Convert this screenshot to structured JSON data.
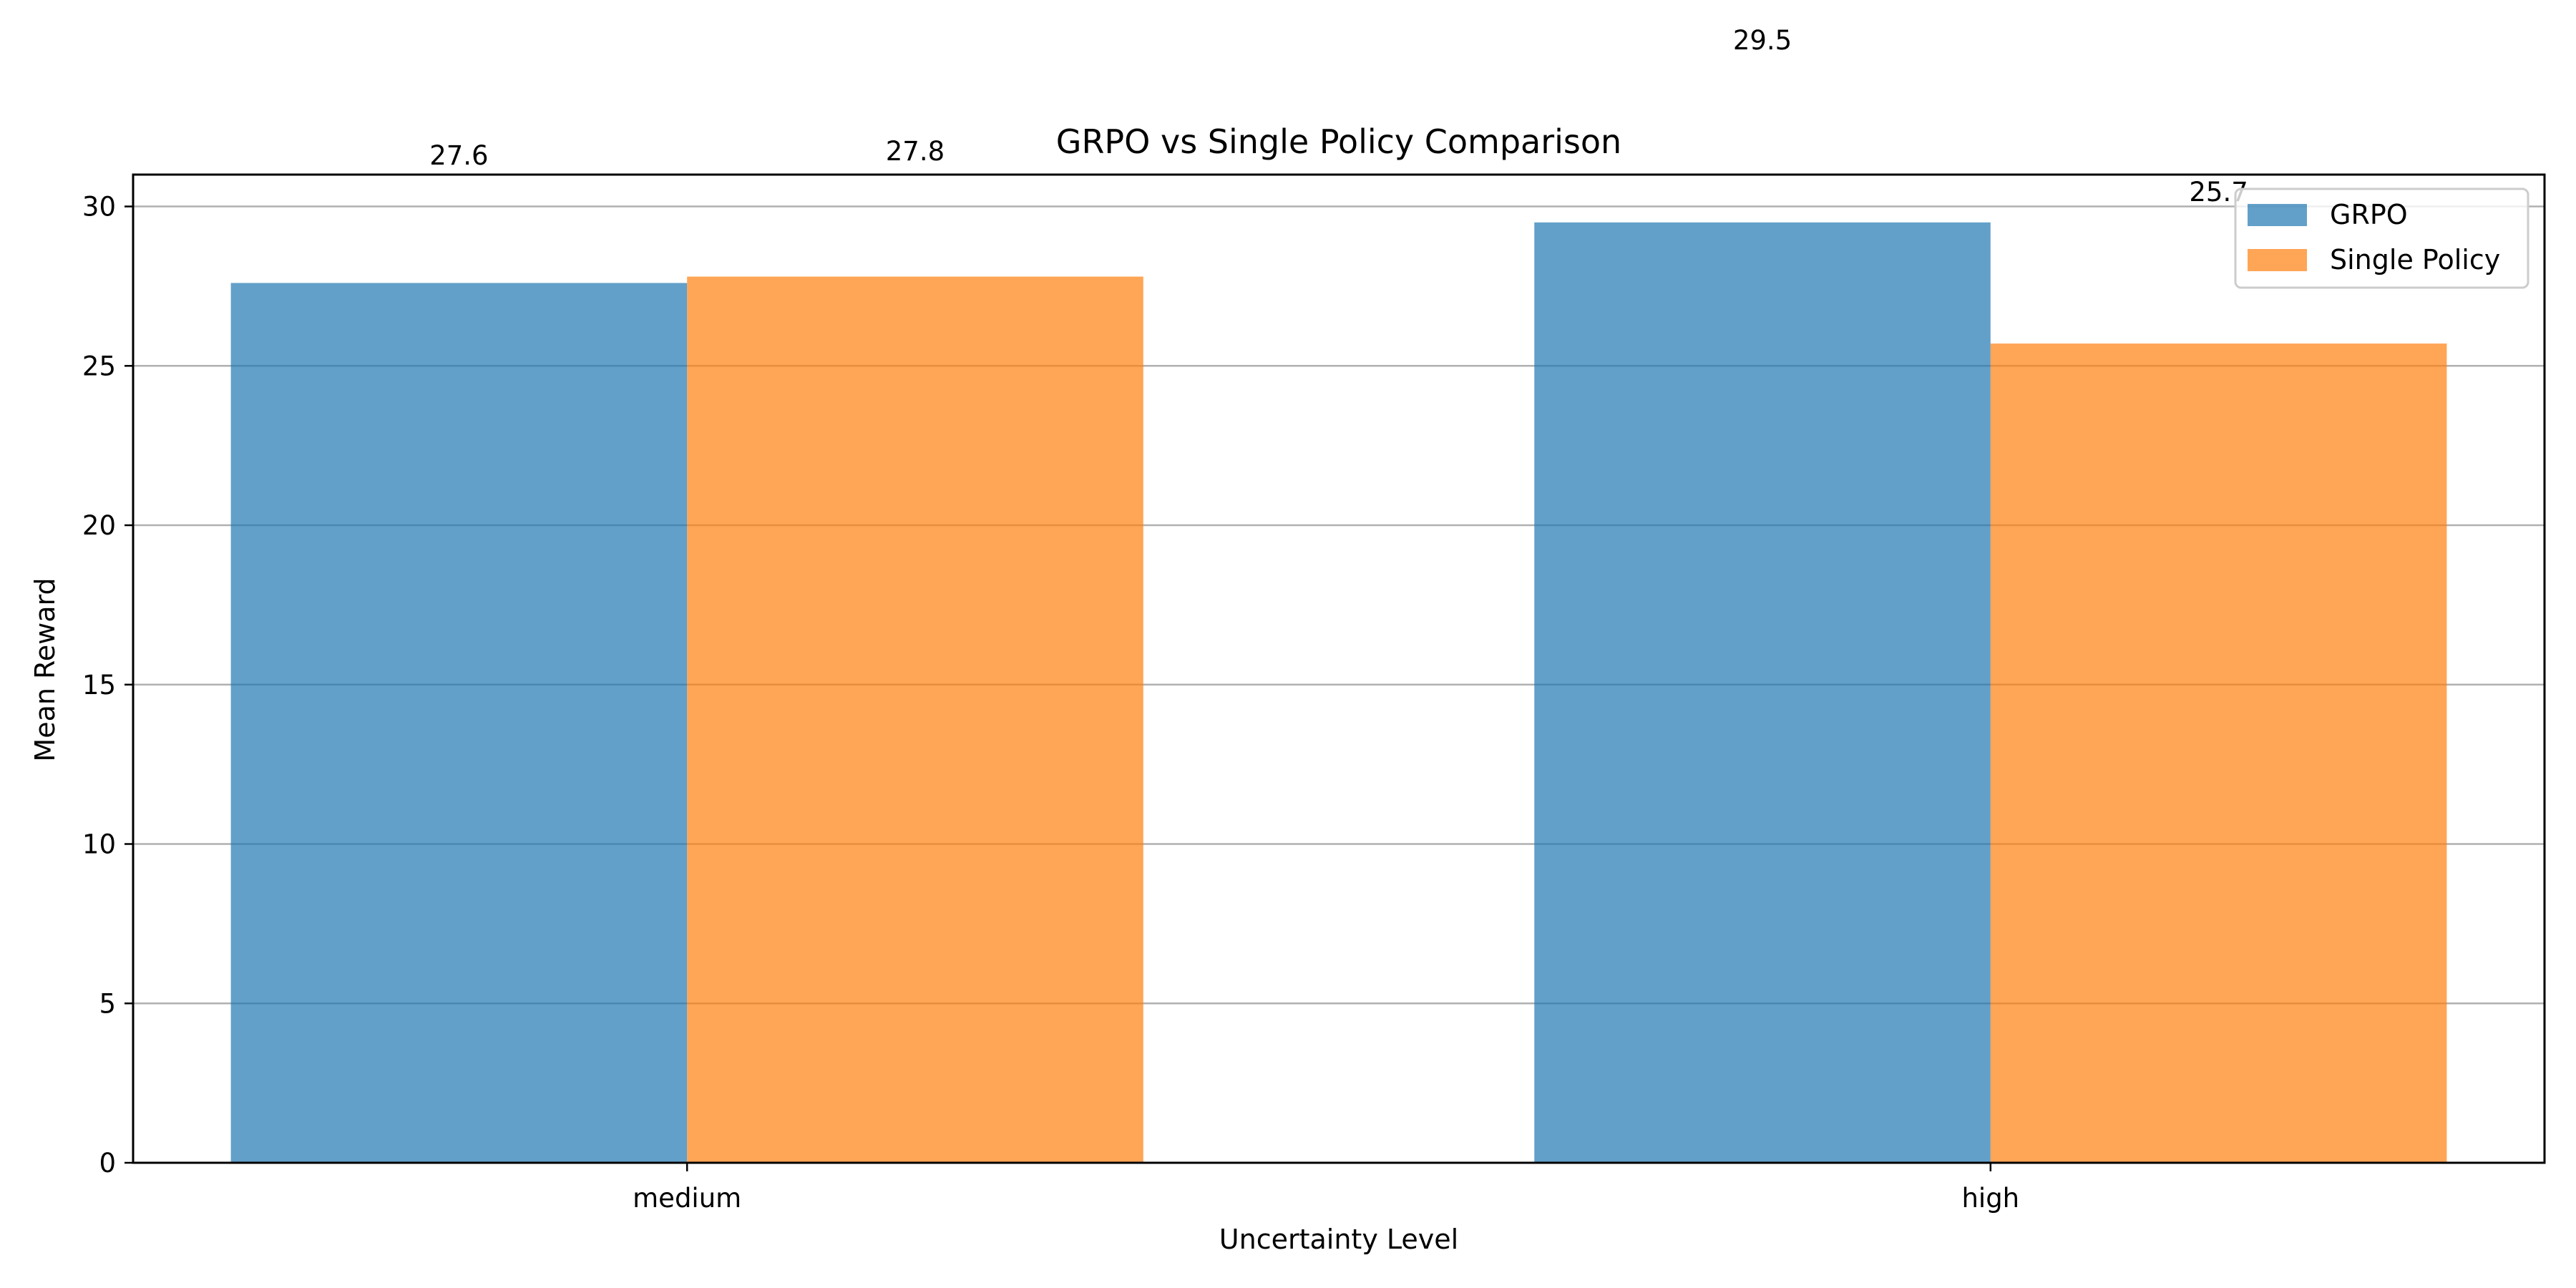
{
  "chart_data": {
    "type": "bar",
    "title": "GRPO vs Single Policy Comparison",
    "xlabel": "Uncertainty Level",
    "ylabel": "Mean Reward",
    "categories": [
      "medium",
      "high"
    ],
    "series": [
      {
        "name": "GRPO",
        "values": [
          27.6,
          29.5
        ],
        "color": "#1f77b4"
      },
      {
        "name": "Single Policy",
        "values": [
          27.8,
          25.7
        ],
        "color": "#ff7f0e"
      }
    ],
    "bar_opacity": 0.7,
    "data_labels": [
      "27.6",
      "29.5",
      "27.8",
      "25.7"
    ],
    "yticks": [
      0,
      5,
      10,
      15,
      20,
      25,
      30
    ],
    "ylim": [
      0,
      31
    ],
    "grid": "horizontal",
    "legend_position": "top-right"
  }
}
